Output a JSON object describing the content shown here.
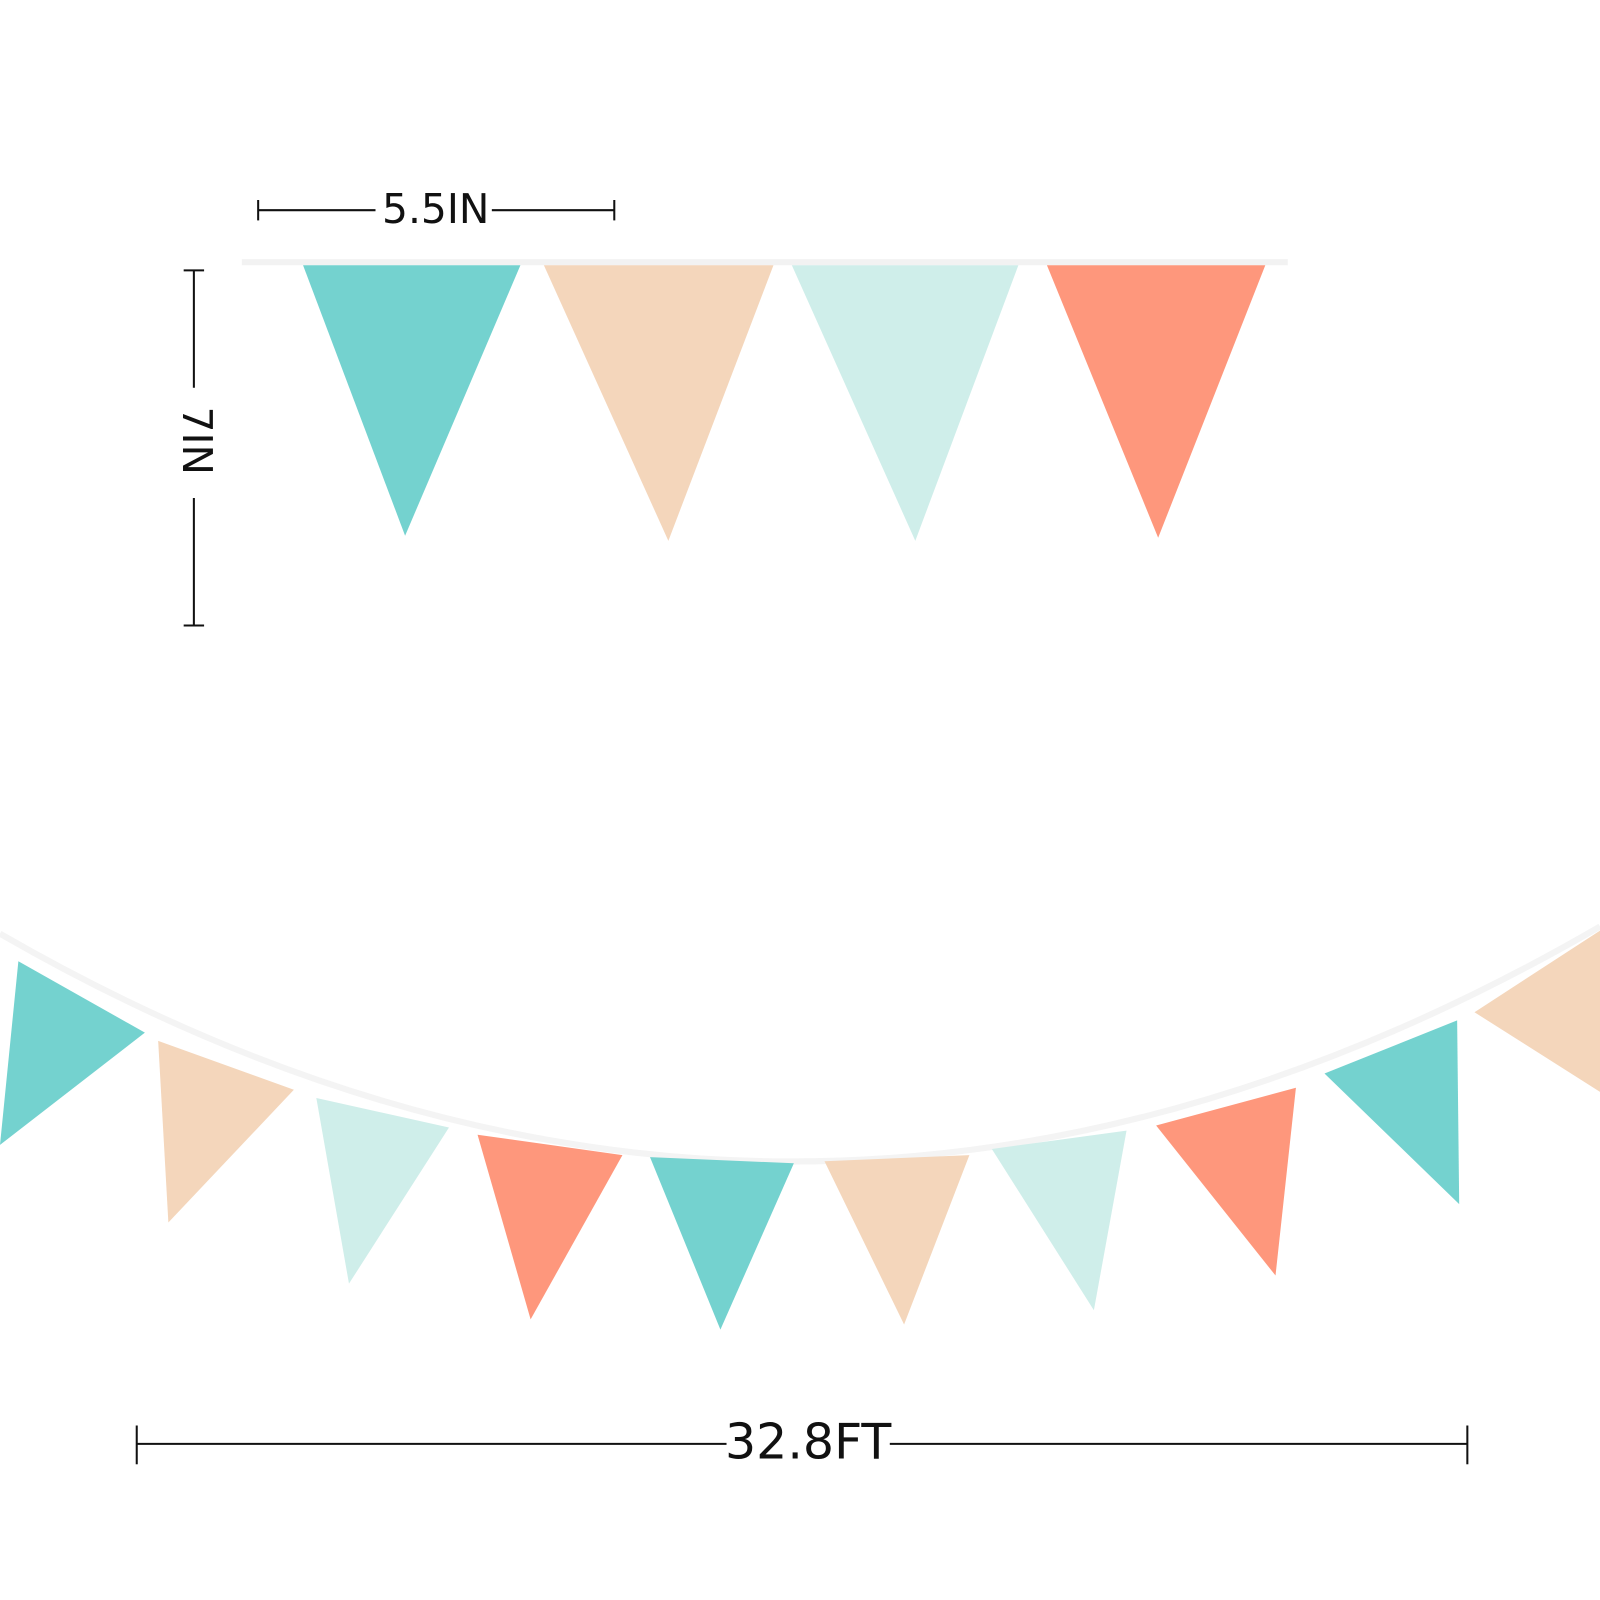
{
  "dimensions": {
    "width": "5.5IN",
    "height": "7IN",
    "length": "32.8FT"
  }
}
